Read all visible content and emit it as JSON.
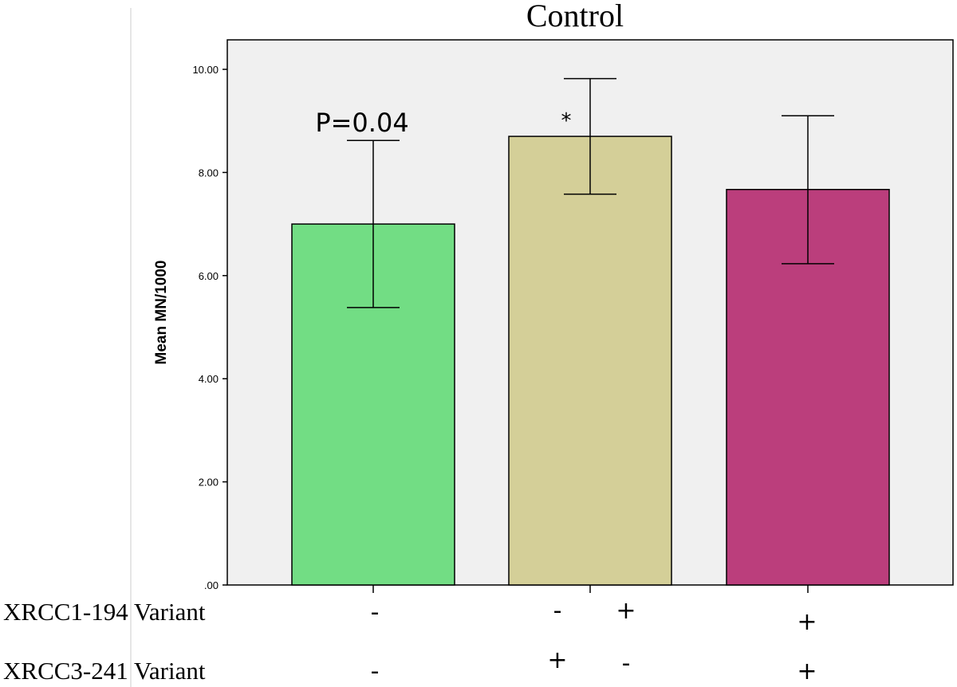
{
  "chart_data": {
    "type": "bar",
    "title": "Control",
    "xlabel": "",
    "ylabel": "Mean MN/1000",
    "ylim": [
      0,
      10.7
    ],
    "yticks": [
      {
        "value": 0,
        "label": ".00"
      },
      {
        "value": 2,
        "label": "2.00"
      },
      {
        "value": 4,
        "label": "4.00"
      },
      {
        "value": 6,
        "label": "6.00"
      },
      {
        "value": 8,
        "label": "8.00"
      },
      {
        "value": 10,
        "label": "10.00"
      }
    ],
    "grid": false,
    "categories": [
      "XRCC1-194 -/XRCC3-241 -",
      "XRCC1-194 -,+/XRCC3-241 +,-",
      "XRCC1-194 +/XRCC3-241 +"
    ],
    "values": [
      7.0,
      8.7,
      7.67
    ],
    "error_low": [
      5.38,
      7.58,
      6.23
    ],
    "error_high": [
      8.62,
      9.82,
      9.1
    ],
    "colors": [
      "#72dd84",
      "#d4cf98",
      "#bb3e7c"
    ],
    "annotations": [
      {
        "bar": 0,
        "text": "P=0.04",
        "kind": "pvalue"
      },
      {
        "bar": 1,
        "text": "*",
        "kind": "star"
      }
    ]
  },
  "genotype_table": {
    "rows": [
      {
        "label": "XRCC1-194  Variant",
        "bar_signs": [
          [
            "-"
          ],
          [
            "-",
            "+"
          ],
          [
            "+"
          ]
        ]
      },
      {
        "label": "XRCC3-241  Variant",
        "bar_signs": [
          [
            "-"
          ],
          [
            "+",
            "-"
          ],
          [
            "+"
          ]
        ]
      }
    ]
  },
  "colors": {
    "plot_bg": "#f0f0f0",
    "axis": "#000000",
    "left_rule": "#dddddd"
  }
}
